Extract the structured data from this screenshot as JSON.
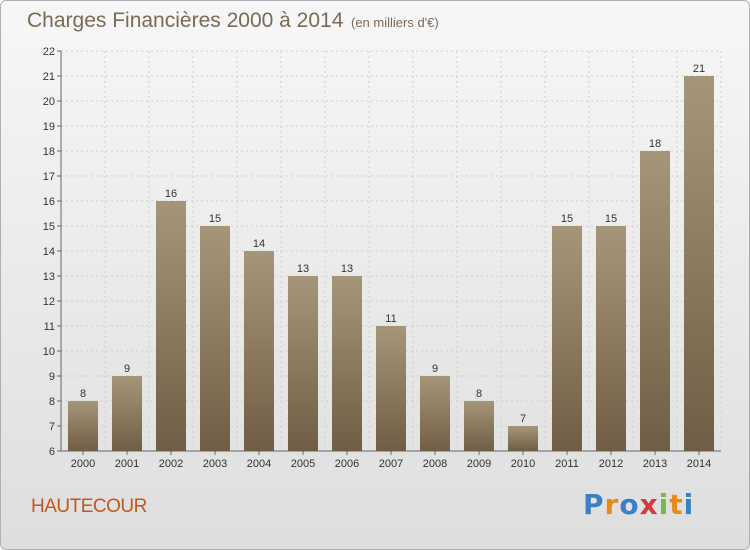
{
  "title": "Charges Financières 2000 à 2014",
  "subtitle": "(en milliers d'€)",
  "commune": "HAUTECOUR",
  "logo": {
    "letters": [
      "P",
      "r",
      "o",
      "x",
      "i",
      "t",
      "i"
    ],
    "colors": [
      "#3c7fc4",
      "#e68a1e",
      "#3c7fc4",
      "#d63a3a",
      "#7ab648",
      "#e68a1e",
      "#3c7fc4"
    ]
  },
  "colors": {
    "bar_top": "#a69679",
    "bar_bottom": "#6f5e45",
    "title": "#7a6a56",
    "commune": "#c0581e"
  },
  "chart_data": {
    "type": "bar",
    "title": "Charges Financières 2000 à 2014",
    "subtitle": "(en milliers d'€)",
    "xlabel": "",
    "ylabel": "",
    "categories": [
      "2000",
      "2001",
      "2002",
      "2003",
      "2004",
      "2005",
      "2006",
      "2007",
      "2008",
      "2009",
      "2010",
      "2011",
      "2012",
      "2013",
      "2014"
    ],
    "values": [
      8,
      9,
      16,
      15,
      14,
      13,
      13,
      11,
      9,
      8,
      7,
      15,
      15,
      18,
      21
    ],
    "ylim": [
      6,
      22
    ],
    "yticks": [
      6,
      7,
      8,
      9,
      10,
      11,
      12,
      13,
      14,
      15,
      16,
      17,
      18,
      19,
      20,
      21,
      22
    ],
    "grid": true,
    "data_labels": true
  }
}
